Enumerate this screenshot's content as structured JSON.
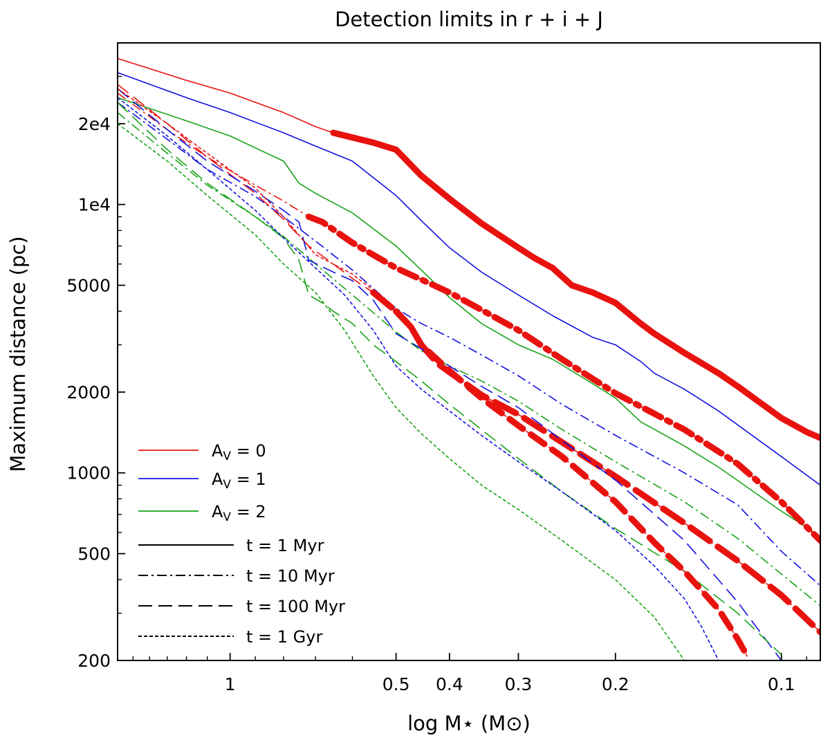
{
  "chart_data": {
    "type": "line",
    "title": "Detection limits in r + i + J",
    "xlabel": "log M⋆ (M⊙)",
    "ylabel": "Maximum distance (pc)",
    "x_scale": "log",
    "y_scale": "log",
    "xlim": [
      1.6,
      0.085
    ],
    "ylim": [
      200,
      40000
    ],
    "x_ticks": [
      1.0,
      0.5,
      0.4,
      0.3,
      0.2,
      0.1
    ],
    "x_tick_labels": [
      "1",
      "0.5",
      "0.4",
      "0.3",
      "0.2",
      "0.1"
    ],
    "y_ticks": [
      200,
      500,
      1000,
      2000,
      5000,
      10000,
      20000
    ],
    "y_tick_labels": [
      "200",
      "500",
      "1000",
      "2000",
      "5000",
      "1e4",
      "2e4"
    ],
    "colors": {
      "Av0": "#e8120f",
      "Av1": "#1010e0",
      "Av2": "#16a316"
    },
    "legend": {
      "placement": "bottom-left",
      "extinction_entries": [
        {
          "key": "Av0",
          "label": "A_V = 0",
          "text_prefix": "A",
          "text_sub": "V",
          "text_suffix": " = 0"
        },
        {
          "key": "Av1",
          "label": "A_V = 1",
          "text_prefix": "A",
          "text_sub": "V",
          "text_suffix": " = 1"
        },
        {
          "key": "Av2",
          "label": "A_V = 2",
          "text_prefix": "A",
          "text_sub": "V",
          "text_suffix": " = 2"
        }
      ],
      "age_entries": [
        {
          "key": "1Myr",
          "label": "t = 1 Myr"
        },
        {
          "key": "10Myr",
          "label": "t = 10 Myr"
        },
        {
          "key": "100Myr",
          "label": "t = 100 Myr"
        },
        {
          "key": "1Gyr",
          "label": "t = 1 Gyr"
        }
      ]
    },
    "series": [
      {
        "name": "A_V=0, t=1 Myr",
        "av": "Av0",
        "age": "1Myr",
        "bold_from": 0.65,
        "x": [
          1.6,
          1.2,
          1.0,
          0.8,
          0.7,
          0.65,
          0.55,
          0.5,
          0.45,
          0.4,
          0.35,
          0.3,
          0.28,
          0.26,
          0.24,
          0.22,
          0.2,
          0.18,
          0.17,
          0.15,
          0.13,
          0.12,
          0.1,
          0.09,
          0.085
        ],
        "y": [
          35000,
          29000,
          26000,
          22000,
          19500,
          18500,
          17000,
          16000,
          12800,
          10500,
          8500,
          6900,
          6300,
          5800,
          5000,
          4700,
          4300,
          3600,
          3300,
          2800,
          2350,
          2100,
          1600,
          1420,
          1350
        ]
      },
      {
        "name": "A_V=1, t=1 Myr",
        "av": "Av1",
        "age": "1Myr",
        "x": [
          1.6,
          1.2,
          1.0,
          0.8,
          0.7,
          0.6,
          0.5,
          0.45,
          0.4,
          0.35,
          0.3,
          0.26,
          0.22,
          0.2,
          0.18,
          0.17,
          0.15,
          0.13,
          0.1,
          0.085
        ],
        "y": [
          31000,
          25000,
          22000,
          18500,
          16500,
          14500,
          10800,
          8700,
          6900,
          5600,
          4600,
          3850,
          3200,
          3000,
          2600,
          2350,
          2050,
          1700,
          1150,
          900
        ]
      },
      {
        "name": "A_V=2, t=1 Myr",
        "av": "Av2",
        "age": "1Myr",
        "x": [
          1.6,
          1.2,
          1.0,
          0.8,
          0.75,
          0.7,
          0.6,
          0.5,
          0.45,
          0.4,
          0.35,
          0.3,
          0.26,
          0.22,
          0.2,
          0.18,
          0.15,
          0.13,
          0.1,
          0.085
        ],
        "y": [
          25000,
          20500,
          18000,
          14500,
          12000,
          11000,
          9300,
          7000,
          5700,
          4500,
          3600,
          3000,
          2650,
          2150,
          1900,
          1550,
          1260,
          1050,
          720,
          580
        ]
      },
      {
        "name": "A_V=0, t=10 Myr",
        "av": "Av0",
        "age": "10Myr",
        "bold_from": 0.72,
        "x": [
          1.6,
          1.3,
          1.1,
          0.9,
          0.8,
          0.72,
          0.68,
          0.6,
          0.5,
          0.4,
          0.35,
          0.3,
          0.25,
          0.2,
          0.15,
          0.12,
          0.1,
          0.085
        ],
        "y": [
          26000,
          19000,
          15000,
          11800,
          10300,
          9000,
          8600,
          7200,
          5800,
          4700,
          4050,
          3400,
          2650,
          1980,
          1450,
          1080,
          780,
          560
        ]
      },
      {
        "name": "A_V=1, t=10 Myr",
        "av": "Av1",
        "age": "10Myr",
        "x": [
          1.6,
          1.3,
          1.1,
          0.9,
          0.8,
          0.7,
          0.6,
          0.5,
          0.45,
          0.4,
          0.35,
          0.3,
          0.25,
          0.2,
          0.15,
          0.12,
          0.1,
          0.085
        ],
        "y": [
          24000,
          17500,
          13500,
          10700,
          9000,
          7300,
          5700,
          4100,
          3600,
          3200,
          2750,
          2300,
          1800,
          1380,
          1000,
          760,
          510,
          380
        ]
      },
      {
        "name": "A_V=2, t=10 Myr",
        "av": "Av2",
        "age": "10Myr",
        "x": [
          1.6,
          1.3,
          1.1,
          0.9,
          0.8,
          0.7,
          0.6,
          0.5,
          0.45,
          0.4,
          0.35,
          0.3,
          0.25,
          0.2,
          0.15,
          0.12,
          0.1,
          0.085
        ],
        "y": [
          22000,
          15500,
          11800,
          9000,
          7600,
          6000,
          4600,
          3350,
          2850,
          2500,
          2200,
          1850,
          1450,
          1100,
          780,
          570,
          420,
          320
        ]
      },
      {
        "name": "A_V=0, t=100 Myr",
        "av": "Av0",
        "age": "100Myr",
        "bold_from": 0.55,
        "x": [
          1.6,
          1.3,
          1.1,
          0.9,
          0.8,
          0.72,
          0.65,
          0.6,
          0.55,
          0.5,
          0.47,
          0.45,
          0.42,
          0.38,
          0.35,
          0.3,
          0.25,
          0.2,
          0.15,
          0.12,
          0.1,
          0.085
        ],
        "y": [
          28000,
          20000,
          15000,
          11000,
          8800,
          7000,
          6000,
          5300,
          4700,
          4000,
          3500,
          3000,
          2550,
          2200,
          1950,
          1650,
          1300,
          970,
          650,
          470,
          350,
          255
        ]
      },
      {
        "name": "A_V=1, t=100 Myr",
        "av": "Av1",
        "age": "100Myr",
        "x": [
          1.6,
          1.3,
          1.1,
          0.9,
          0.8,
          0.75,
          0.72,
          0.65,
          0.6,
          0.55,
          0.5,
          0.45,
          0.4,
          0.35,
          0.3,
          0.25,
          0.2,
          0.15,
          0.12,
          0.1
        ],
        "y": [
          27000,
          19000,
          14500,
          11200,
          9500,
          8600,
          6200,
          5600,
          5200,
          4400,
          3300,
          2900,
          2500,
          2100,
          1750,
          1320,
          940,
          560,
          330,
          200
        ]
      },
      {
        "name": "A_V=2, t=100 Myr",
        "av": "Av2",
        "age": "100Myr",
        "x": [
          1.6,
          1.3,
          1.1,
          0.9,
          0.8,
          0.75,
          0.72,
          0.68,
          0.65,
          0.6,
          0.55,
          0.5,
          0.45,
          0.4,
          0.35,
          0.3,
          0.25,
          0.2,
          0.15,
          0.12,
          0.1
        ],
        "y": [
          24000,
          16000,
          12000,
          9000,
          7500,
          6200,
          4600,
          4300,
          4000,
          3600,
          3000,
          2600,
          2200,
          1800,
          1450,
          1130,
          850,
          620,
          430,
          300,
          210
        ]
      },
      {
        "name": "A_V=0, t=1 Gyr",
        "av": "Av0",
        "age": "1Gyr",
        "bold_from": 0.5,
        "x": [
          1.6,
          1.3,
          1.1,
          0.9,
          0.8,
          0.7,
          0.6,
          0.55,
          0.5,
          0.47,
          0.45,
          0.4,
          0.35,
          0.3,
          0.25,
          0.2,
          0.17,
          0.15,
          0.13,
          0.12,
          0.115
        ],
        "y": [
          27000,
          20000,
          15500,
          11500,
          9000,
          6500,
          5500,
          4800,
          4000,
          3500,
          3000,
          2400,
          1900,
          1500,
          1150,
          780,
          550,
          430,
          310,
          240,
          205
        ]
      },
      {
        "name": "A_V=1, t=1 Gyr",
        "av": "Av1",
        "age": "1Gyr",
        "x": [
          1.6,
          1.3,
          1.1,
          0.9,
          0.8,
          0.7,
          0.62,
          0.55,
          0.5,
          0.45,
          0.4,
          0.35,
          0.3,
          0.25,
          0.2,
          0.17,
          0.15,
          0.14,
          0.13
        ],
        "y": [
          25000,
          18000,
          13500,
          9500,
          7500,
          5800,
          4600,
          3400,
          2500,
          2050,
          1700,
          1380,
          1100,
          850,
          610,
          450,
          340,
          270,
          200
        ]
      },
      {
        "name": "A_V=2, t=1 Gyr",
        "av": "Av2",
        "age": "1Gyr",
        "x": [
          1.6,
          1.3,
          1.1,
          0.9,
          0.8,
          0.7,
          0.62,
          0.55,
          0.5,
          0.45,
          0.4,
          0.35,
          0.3,
          0.25,
          0.2,
          0.17,
          0.15
        ],
        "y": [
          20000,
          14500,
          10800,
          7700,
          6000,
          4700,
          3400,
          2300,
          1750,
          1400,
          1130,
          900,
          730,
          560,
          400,
          290,
          200
        ]
      }
    ]
  }
}
